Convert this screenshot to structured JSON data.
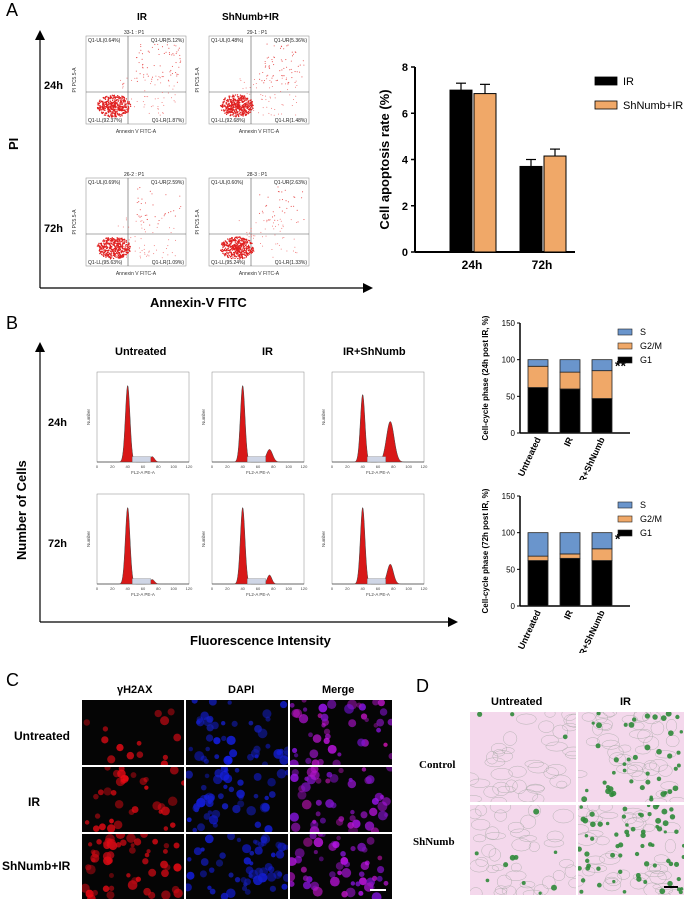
{
  "panels": {
    "a": "A",
    "b": "B",
    "c": "C",
    "d": "D"
  },
  "panelA": {
    "axis_y": "PI",
    "axis_x": "Annexin-V FITC",
    "col_headers": [
      "IR",
      "ShNumb+IR"
    ],
    "row_labels": [
      "24h",
      "72h"
    ],
    "plots": [
      {
        "id": "33-1 : P1",
        "ul": "Q1-UL(0.64%)",
        "ur": "Q1-UR(5.12%)",
        "ll": "Q1-LL(92.37%)",
        "lr": "Q1-LR(1.87%)"
      },
      {
        "id": "29-1 : P1",
        "ul": "Q1-UL(0.48%)",
        "ur": "Q1-UR(5.36%)",
        "ll": "Q1-LL(92.68%)",
        "lr": "Q1-LR(1.48%)"
      },
      {
        "id": "26-2 : P1",
        "ul": "Q1-UL(0.69%)",
        "ur": "Q1-UR(2.59%)",
        "ll": "Q1-LL(95.63%)",
        "lr": "Q1-LR(1.09%)"
      },
      {
        "id": "28-3 : P1",
        "ul": "Q1-UL(0.60%)",
        "ur": "Q1-UR(2.63%)",
        "ll": "Q1-LL(95.24%)",
        "lr": "Q1-LR(1.33%)"
      }
    ],
    "flow_axis_x": "Annexin V FITC-A",
    "flow_axis_y": "PI PC5.5-A"
  },
  "panelB": {
    "axis_y": "Number of Cells",
    "axis_x": "Fluorescence Intensity",
    "col_headers": [
      "Untreated",
      "IR",
      "IR+ShNumb"
    ],
    "row_labels": [
      "24h",
      "72h"
    ],
    "hist_axis_x": "FL2-A PE-A",
    "hist_axis_y": "Number"
  },
  "panelC": {
    "col_headers": [
      "γH2AX",
      "DAPI",
      "Merge"
    ],
    "row_labels": [
      "Untreated",
      "IR",
      "ShNumb+IR"
    ]
  },
  "panelD": {
    "col_headers": [
      "Untreated",
      "IR"
    ],
    "row_labels": [
      "Control",
      "ShNumb"
    ]
  },
  "chart_data": [
    {
      "type": "bar",
      "title": "",
      "ylabel": "Cell apoptosis rate (%)",
      "xlabel": "",
      "categories": [
        "24h",
        "72h"
      ],
      "ylim": [
        0,
        8
      ],
      "yticks": [
        0,
        2,
        4,
        6,
        8
      ],
      "series": [
        {
          "name": "IR",
          "color": "#000000",
          "values": [
            7.0,
            3.7
          ],
          "errors": [
            0.3,
            0.3
          ]
        },
        {
          "name": "ShNumb+IR",
          "color": "#f0a868",
          "values": [
            6.85,
            4.15
          ],
          "errors": [
            0.4,
            0.3
          ]
        }
      ],
      "legend": "top-right"
    },
    {
      "type": "bar",
      "stacked": true,
      "ylabel": "Cell-cycle phase (24h post IR, %)",
      "categories": [
        "Untreated",
        "IR",
        "IR+ShNumb"
      ],
      "ylim": [
        0,
        150
      ],
      "yticks": [
        0,
        50,
        100,
        150
      ],
      "series": [
        {
          "name": "G1",
          "color": "#000000",
          "values": [
            62,
            60,
            47
          ]
        },
        {
          "name": "G2/M",
          "color": "#f0a868",
          "values": [
            29,
            23,
            38
          ]
        },
        {
          "name": "S",
          "color": "#6a95cc",
          "values": [
            9,
            17,
            15
          ]
        }
      ],
      "annotation": "**",
      "legend": "top-right"
    },
    {
      "type": "bar",
      "stacked": true,
      "ylabel": "Cell-cycle phase (72h post IR, %)",
      "categories": [
        "Untreated",
        "IR",
        "IR+ShNumb"
      ],
      "ylim": [
        0,
        150
      ],
      "yticks": [
        0,
        50,
        100,
        150
      ],
      "series": [
        {
          "name": "G1",
          "color": "#000000",
          "values": [
            62,
            65,
            62
          ]
        },
        {
          "name": "G2/M",
          "color": "#f0a868",
          "values": [
            6,
            6,
            16
          ]
        },
        {
          "name": "S",
          "color": "#6a95cc",
          "values": [
            32,
            29,
            22
          ]
        }
      ],
      "annotation": "*",
      "legend": "top-right"
    }
  ]
}
